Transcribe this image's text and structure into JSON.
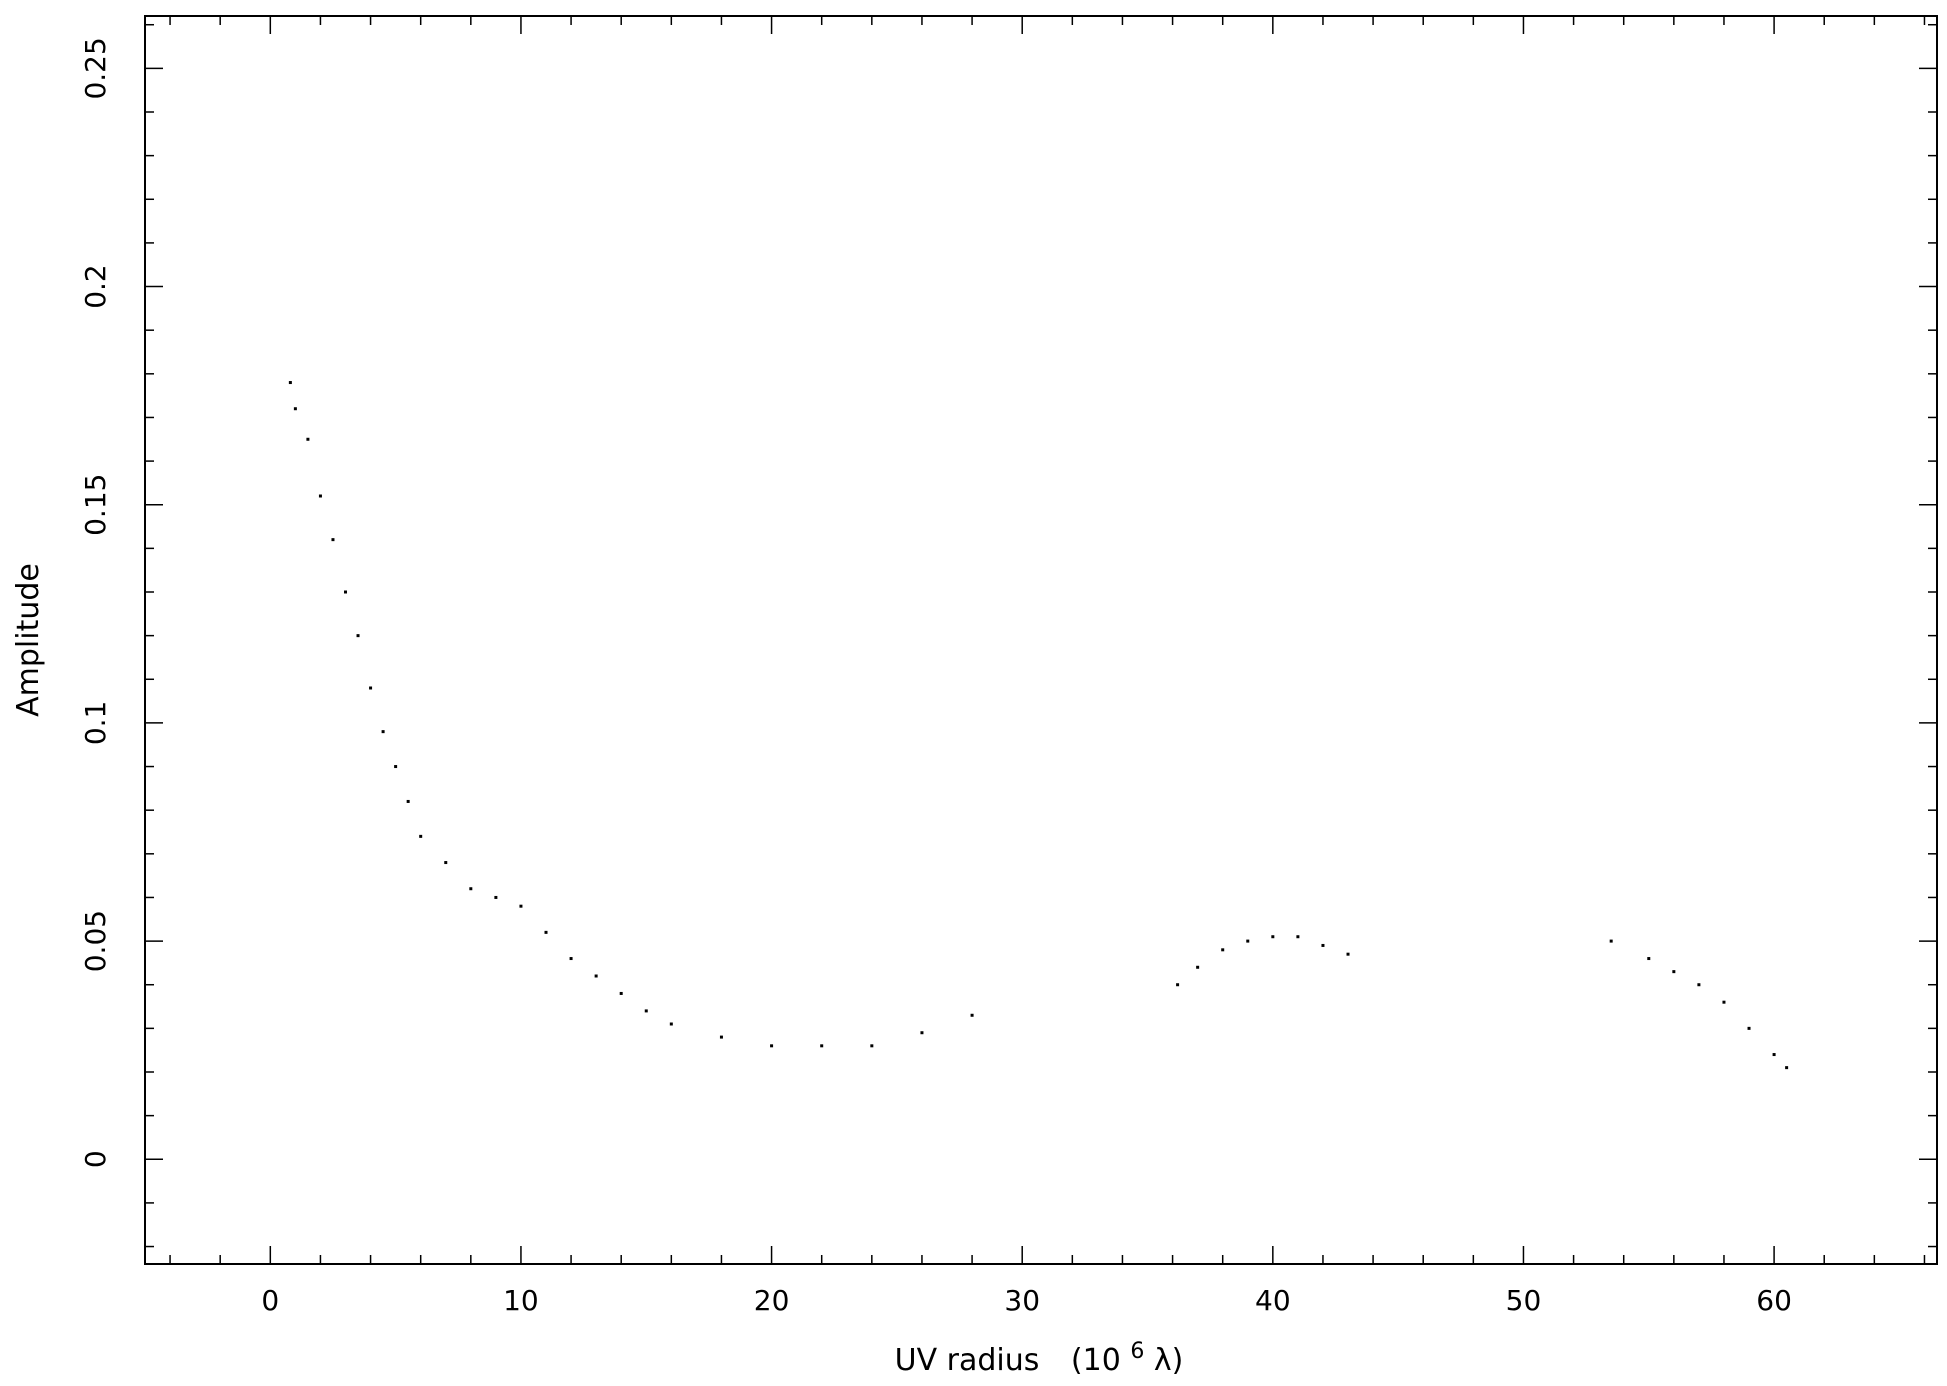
{
  "chart_data": {
    "type": "scatter",
    "title": "",
    "xlabel": {
      "text": "UV radius",
      "unit_prefix": "(10",
      "unit_exponent": "6",
      "unit_suffix": " λ)"
    },
    "ylabel": "Amplitude",
    "xlim": [
      -5,
      66.5
    ],
    "ylim": [
      -0.024,
      0.262
    ],
    "x_ticks": [
      "0",
      "10",
      "20",
      "30",
      "40",
      "50",
      "60"
    ],
    "x_tick_values": [
      0,
      10,
      20,
      30,
      40,
      50,
      60
    ],
    "y_ticks": [
      "0",
      "0.05",
      "0.1",
      "0.15",
      "0.2",
      "0.25"
    ],
    "y_tick_values": [
      0,
      0.05,
      0.1,
      0.15,
      0.2,
      0.25
    ],
    "grid": false,
    "legend": "none",
    "marker_color": "#000000",
    "series": [
      {
        "values": [
          [
            0.8,
            0.178
          ],
          [
            1.0,
            0.172
          ],
          [
            1.5,
            0.165
          ],
          [
            2.0,
            0.152
          ],
          [
            2.5,
            0.142
          ],
          [
            3.0,
            0.13
          ],
          [
            3.5,
            0.12
          ],
          [
            4.0,
            0.108
          ],
          [
            4.5,
            0.098
          ],
          [
            5.0,
            0.09
          ],
          [
            5.5,
            0.082
          ],
          [
            6.0,
            0.074
          ],
          [
            7.0,
            0.068
          ],
          [
            8.0,
            0.062
          ],
          [
            9.0,
            0.06
          ],
          [
            10.0,
            0.058
          ],
          [
            11.0,
            0.052
          ],
          [
            12.0,
            0.046
          ],
          [
            13.0,
            0.042
          ],
          [
            14.0,
            0.038
          ],
          [
            15.0,
            0.034
          ],
          [
            16.0,
            0.031
          ],
          [
            18.0,
            0.028
          ],
          [
            20.0,
            0.026
          ],
          [
            22.0,
            0.026
          ],
          [
            24.0,
            0.026
          ],
          [
            26.0,
            0.029
          ],
          [
            28.0,
            0.033
          ],
          [
            36.2,
            0.04
          ],
          [
            37.0,
            0.044
          ],
          [
            38.0,
            0.048
          ],
          [
            39.0,
            0.05
          ],
          [
            40.0,
            0.051
          ],
          [
            41.0,
            0.051
          ],
          [
            42.0,
            0.049
          ],
          [
            43.0,
            0.047
          ],
          [
            53.5,
            0.05
          ],
          [
            55.0,
            0.046
          ],
          [
            56.0,
            0.043
          ],
          [
            57.0,
            0.04
          ],
          [
            58.0,
            0.036
          ],
          [
            59.0,
            0.03
          ],
          [
            60.0,
            0.024
          ],
          [
            60.5,
            0.021
          ]
        ]
      }
    ]
  }
}
